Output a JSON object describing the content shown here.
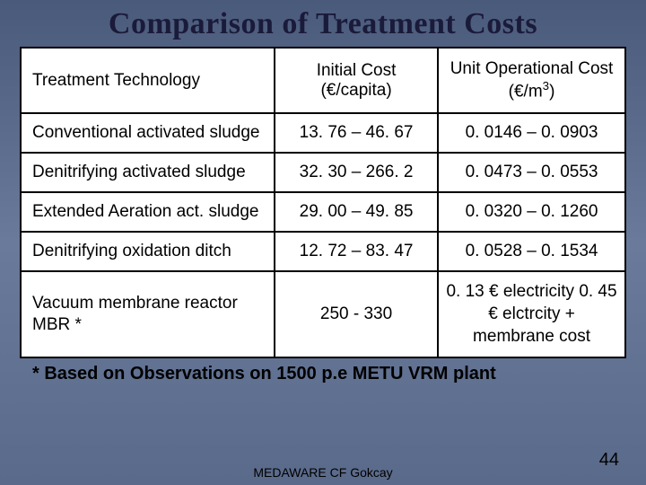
{
  "slide": {
    "title": "Comparison of Treatment Costs",
    "footnote": "* Based on Observations on 1500 p.e METU VRM plant",
    "footer_credit": "MEDAWARE   CF Gokcay",
    "page_number": "44"
  },
  "table": {
    "type": "table",
    "background_color": "#ffffff",
    "border_color": "#000000",
    "text_color": "#000000",
    "font_size_pt": 14,
    "columns": [
      {
        "label": "Treatment Technology",
        "width_pct": 42,
        "align": "left"
      },
      {
        "label": "Initial Cost (€/capita)",
        "width_pct": 27,
        "align": "center"
      },
      {
        "label": "Unit Operational Cost (€/m³)",
        "width_pct": 31,
        "align": "center"
      }
    ],
    "rows": [
      {
        "tech": "Conventional activated sludge",
        "initial": "13. 76 – 46. 67",
        "unit": "0. 0146 – 0. 0903"
      },
      {
        "tech": "Denitrifying activated sludge",
        "initial": "32. 30 – 266. 2",
        "unit": "0. 0473 – 0. 0553"
      },
      {
        "tech": "Extended Aeration act. sludge",
        "initial": "29. 00 – 49. 85",
        "unit": "0. 0320 – 0. 1260"
      },
      {
        "tech": " Denitrifying oxidation ditch",
        "initial": "12. 72 – 83. 47",
        "unit": "0. 0528 – 0. 1534"
      },
      {
        "tech": "Vacuum membrane reactor MBR  *",
        "initial": "250 - 330",
        "unit": "0. 13 € electricity 0. 45 € elctrcity + membrane cost"
      }
    ]
  },
  "styling": {
    "slide_bg_gradient_top": "#4a5a7a",
    "slide_bg_gradient_mid": "#6a7a9a",
    "slide_bg_gradient_bot": "#5a6a8a",
    "title_color": "#1a1a3a",
    "title_fontsize": 34,
    "table_border_width": 2
  }
}
